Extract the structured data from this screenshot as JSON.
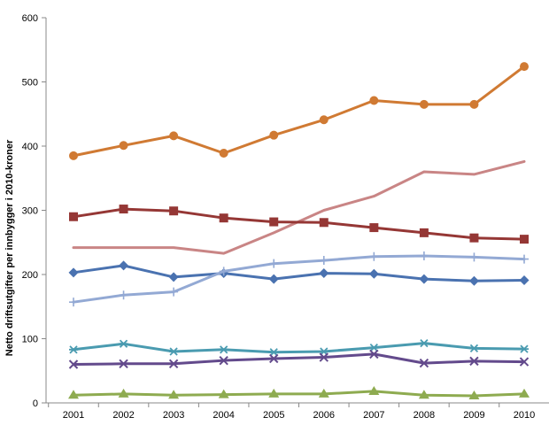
{
  "chart_data": {
    "type": "line",
    "title": "",
    "xlabel": "",
    "ylabel": "Netto driftsutgifter per innbygger i 2010-kroner",
    "ylim": [
      0,
      600
    ],
    "yticks": [
      0,
      100,
      200,
      300,
      400,
      500,
      600
    ],
    "grid": false,
    "legend": "none",
    "categories": [
      "2001",
      "2002",
      "2003",
      "2004",
      "2005",
      "2006",
      "2007",
      "2008",
      "2009",
      "2010"
    ],
    "series": [
      {
        "color": "#d07a33",
        "marker": "circle",
        "values": [
          385,
          401,
          416,
          389,
          417,
          441,
          471,
          465,
          465,
          524
        ]
      },
      {
        "color": "#c98585",
        "marker": "none",
        "values": [
          242,
          242,
          242,
          233,
          265,
          300,
          322,
          360,
          356,
          376
        ]
      },
      {
        "color": "#953735",
        "marker": "square",
        "values": [
          290,
          302,
          299,
          288,
          282,
          281,
          273,
          265,
          257,
          255
        ]
      },
      {
        "color": "#4a72b0",
        "marker": "diamond",
        "values": [
          203,
          214,
          196,
          202,
          193,
          202,
          201,
          193,
          190,
          191
        ]
      },
      {
        "color": "#93a9d4",
        "marker": "plus",
        "values": [
          157,
          168,
          173,
          205,
          217,
          222,
          228,
          229,
          227,
          224
        ]
      },
      {
        "color": "#4a9bb0",
        "marker": "asterisk",
        "values": [
          83,
          92,
          80,
          83,
          79,
          80,
          86,
          93,
          85,
          84
        ]
      },
      {
        "color": "#634a8c",
        "marker": "x",
        "values": [
          60,
          61,
          61,
          66,
          69,
          71,
          76,
          62,
          65,
          64
        ]
      },
      {
        "color": "#8eab50",
        "marker": "triangle",
        "values": [
          12,
          14,
          12,
          13,
          14,
          14,
          18,
          12,
          11,
          14
        ]
      }
    ]
  }
}
